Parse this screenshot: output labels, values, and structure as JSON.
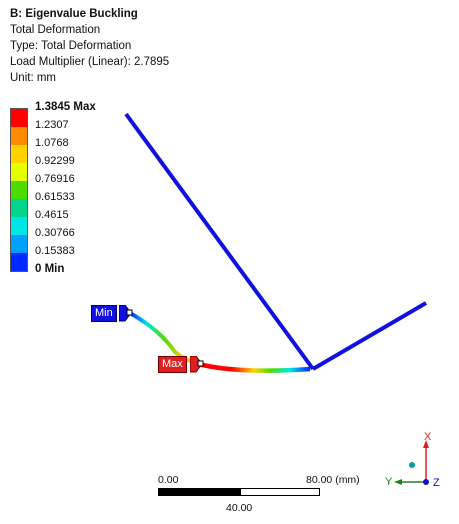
{
  "header": {
    "title": "B: Eigenvalue Buckling",
    "line1": "Total Deformation",
    "line2": "Type: Total Deformation",
    "line3": "Load Multiplier (Linear): 2.7895",
    "line4": "Unit: mm"
  },
  "legend": {
    "labels": [
      "1.3845 Max",
      "1.2307",
      "1.0768",
      "0.92299",
      "0.76916",
      "0.61533",
      "0.4615",
      "0.30766",
      "0.15383",
      "0 Min"
    ],
    "colors": [
      "#ff0000",
      "#ff8c00",
      "#ffd200",
      "#e6ff00",
      "#4cdc00",
      "#00d78c",
      "#00e6e6",
      "#00a0ff",
      "#0028ff"
    ]
  },
  "probes": {
    "min_label": "Min",
    "max_label": "Max"
  },
  "scale_bar": {
    "left_label": "0.00",
    "right_label": "80.00 (mm)",
    "mid_label": "40.00"
  },
  "triad": {
    "x_label": "X",
    "y_label": "Y",
    "z_label": "Z"
  },
  "colors": {
    "undeformed": "#1010e0",
    "triad_x": "#e02020",
    "triad_y": "#208020",
    "triad_z": "#1010c0",
    "triad_origin": "#00a0a0"
  }
}
